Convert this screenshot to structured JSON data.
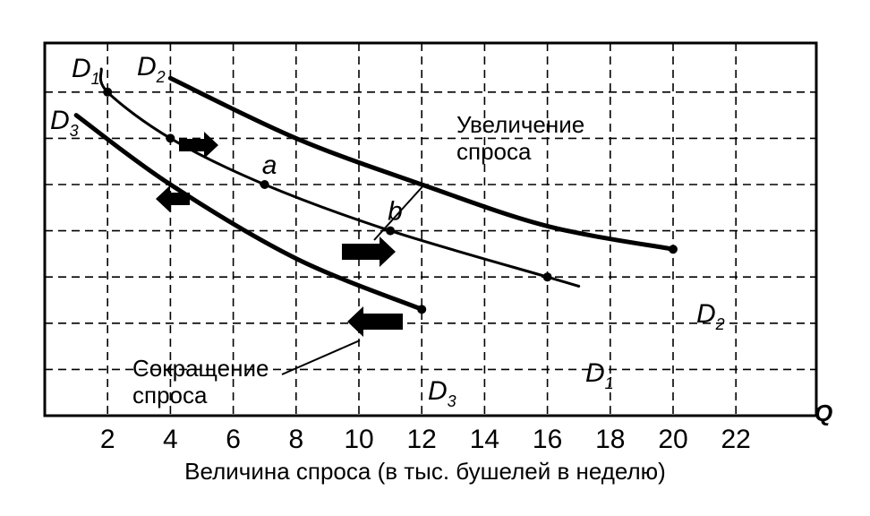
{
  "chart_data": {
    "type": "line",
    "xlabel": "Величина спроса (в тыс. бушелей в неделю)",
    "x_axis_letter": "Q",
    "xticks": [
      2,
      4,
      6,
      8,
      10,
      12,
      14,
      16,
      18,
      20,
      22
    ],
    "xlim": [
      0,
      24
    ],
    "grid": true,
    "series": [
      {
        "name": "D",
        "subscript": "1",
        "points": [
          [
            1.8,
            7.5
          ],
          [
            2,
            7.0
          ],
          [
            4,
            6.0
          ],
          [
            7,
            5.0
          ],
          [
            11,
            4.0
          ],
          [
            16,
            3.0
          ],
          [
            17,
            2.8
          ]
        ],
        "marked_points": [
          [
            2,
            7.0
          ],
          [
            4,
            6.0
          ],
          [
            7,
            5.0
          ],
          [
            11,
            4.0
          ],
          [
            16,
            3.0
          ]
        ]
      },
      {
        "name": "D",
        "subscript": "2",
        "points": [
          [
            4,
            7.3
          ],
          [
            8,
            6.0
          ],
          [
            12,
            5.0
          ],
          [
            16,
            4.1
          ],
          [
            20,
            3.6
          ]
        ],
        "marked_points": [
          [
            20,
            3.6
          ]
        ]
      },
      {
        "name": "D",
        "subscript": "3",
        "points": [
          [
            1,
            6.5
          ],
          [
            4,
            5.0
          ],
          [
            8,
            3.4
          ],
          [
            12,
            2.3
          ]
        ],
        "marked_points": [
          [
            12,
            2.3
          ]
        ]
      }
    ],
    "point_labels": [
      {
        "text": "a",
        "x": 7,
        "y": 5.0
      },
      {
        "text": "b",
        "x": 11,
        "y": 4.0
      }
    ],
    "annotations": [
      {
        "text": "Увеличение",
        "line": 1
      },
      {
        "text": "спроса",
        "line": 2
      },
      {
        "text": "Сокращение",
        "line": 1
      },
      {
        "text": "спроса",
        "line": 2
      }
    ]
  }
}
